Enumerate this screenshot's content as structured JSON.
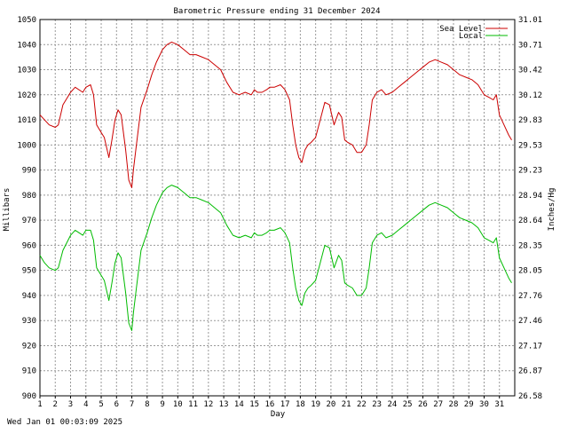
{
  "chart_data": {
    "type": "line",
    "title": "Barometric Pressure ending 31 December 2024",
    "xlabel": "Day",
    "ylabel_left": "Millibars",
    "ylabel_right": "Inches/Hg",
    "xlim": [
      1,
      32
    ],
    "ylim": [
      900,
      1050
    ],
    "grid": true,
    "legend_position": "top-right",
    "x_ticks": [
      "1",
      "2",
      "3",
      "4",
      "5",
      "6",
      "7",
      "8",
      "9",
      "10",
      "11",
      "12",
      "13",
      "14",
      "15",
      "16",
      "17",
      "18",
      "19",
      "20",
      "21",
      "22",
      "23",
      "24",
      "25",
      "26",
      "27",
      "28",
      "29",
      "30",
      "31"
    ],
    "y_ticks_left": [
      "900",
      "910",
      "920",
      "930",
      "940",
      "950",
      "960",
      "970",
      "980",
      "990",
      "1000",
      "1010",
      "1020",
      "1030",
      "1040",
      "1050"
    ],
    "y_ticks_right": [
      "26.58",
      "26.87",
      "27.17",
      "27.46",
      "27.76",
      "28.05",
      "28.35",
      "28.64",
      "28.94",
      "29.23",
      "29.53",
      "29.83",
      "30.12",
      "30.42",
      "30.71",
      "31.01"
    ],
    "timestamp": "Wed Jan 01 00:03:09 2025",
    "series": [
      {
        "name": "Sea Level",
        "color": "#cc0000",
        "x": [
          1.0,
          1.3,
          1.6,
          2.0,
          2.2,
          2.5,
          3.0,
          3.3,
          3.8,
          4.0,
          4.3,
          4.5,
          4.7,
          5.0,
          5.2,
          5.5,
          5.7,
          5.9,
          6.1,
          6.3,
          6.6,
          6.8,
          7.0,
          7.1,
          7.3,
          7.6,
          8.0,
          8.3,
          8.6,
          9.0,
          9.3,
          9.6,
          10.0,
          10.4,
          10.8,
          11.2,
          11.6,
          12.0,
          12.4,
          12.8,
          13.2,
          13.6,
          14.0,
          14.4,
          14.8,
          15.0,
          15.2,
          15.5,
          15.8,
          16.0,
          16.3,
          16.7,
          17.0,
          17.3,
          17.5,
          17.7,
          17.9,
          18.1,
          18.3,
          18.5,
          18.7,
          19.0,
          19.3,
          19.6,
          19.9,
          20.2,
          20.5,
          20.7,
          20.9,
          21.1,
          21.4,
          21.7,
          22.0,
          22.3,
          22.5,
          22.7,
          23.0,
          23.3,
          23.6,
          24.0,
          24.4,
          24.8,
          25.2,
          25.6,
          26.0,
          26.4,
          26.8,
          27.2,
          27.6,
          28.0,
          28.4,
          28.8,
          29.2,
          29.6,
          30.0,
          30.3,
          30.6,
          30.8,
          31.0,
          31.3,
          31.6,
          31.8
        ],
        "values": [
          1012,
          1010,
          1008,
          1007,
          1008,
          1016,
          1021,
          1023,
          1021,
          1023,
          1024,
          1020,
          1008,
          1005,
          1003,
          995,
          1002,
          1010,
          1014,
          1012,
          998,
          986,
          983,
          990,
          1000,
          1015,
          1022,
          1028,
          1033,
          1038,
          1040,
          1041,
          1040,
          1038,
          1036,
          1036,
          1035,
          1034,
          1032,
          1030,
          1025,
          1021,
          1020,
          1021,
          1020,
          1022,
          1021,
          1021,
          1022,
          1023,
          1023,
          1024,
          1022,
          1018,
          1008,
          1000,
          995,
          993,
          998,
          1000,
          1001,
          1003,
          1010,
          1017,
          1016,
          1008,
          1013,
          1011,
          1002,
          1001,
          1000,
          997,
          997,
          1000,
          1008,
          1018,
          1021,
          1022,
          1020,
          1021,
          1023,
          1025,
          1027,
          1029,
          1031,
          1033,
          1034,
          1033,
          1032,
          1030,
          1028,
          1027,
          1026,
          1024,
          1020,
          1019,
          1018,
          1020,
          1012,
          1008,
          1004,
          1002
        ]
      },
      {
        "name": "Local",
        "color": "#00bb00",
        "x": [
          1.0,
          1.3,
          1.6,
          2.0,
          2.2,
          2.5,
          3.0,
          3.3,
          3.8,
          4.0,
          4.3,
          4.5,
          4.7,
          5.0,
          5.2,
          5.5,
          5.7,
          5.9,
          6.1,
          6.3,
          6.6,
          6.8,
          7.0,
          7.1,
          7.3,
          7.6,
          8.0,
          8.3,
          8.6,
          9.0,
          9.3,
          9.6,
          10.0,
          10.4,
          10.8,
          11.2,
          11.6,
          12.0,
          12.4,
          12.8,
          13.2,
          13.6,
          14.0,
          14.4,
          14.8,
          15.0,
          15.2,
          15.5,
          15.8,
          16.0,
          16.3,
          16.7,
          17.0,
          17.3,
          17.5,
          17.7,
          17.9,
          18.1,
          18.3,
          18.5,
          18.7,
          19.0,
          19.3,
          19.6,
          19.9,
          20.2,
          20.5,
          20.7,
          20.9,
          21.1,
          21.4,
          21.7,
          22.0,
          22.3,
          22.5,
          22.7,
          23.0,
          23.3,
          23.6,
          24.0,
          24.4,
          24.8,
          25.2,
          25.6,
          26.0,
          26.4,
          26.8,
          27.2,
          27.6,
          28.0,
          28.4,
          28.8,
          29.2,
          29.6,
          30.0,
          30.3,
          30.6,
          30.8,
          31.0,
          31.3,
          31.6,
          31.8
        ],
        "values": [
          956,
          953,
          951,
          950,
          951,
          958,
          964,
          966,
          964,
          966,
          966,
          962,
          951,
          948,
          946,
          938,
          945,
          953,
          957,
          955,
          941,
          929,
          926,
          933,
          943,
          958,
          965,
          971,
          976,
          981,
          983,
          984,
          983,
          981,
          979,
          979,
          978,
          977,
          975,
          973,
          968,
          964,
          963,
          964,
          963,
          965,
          964,
          964,
          965,
          966,
          966,
          967,
          965,
          961,
          951,
          943,
          938,
          936,
          941,
          943,
          944,
          946,
          953,
          960,
          959,
          951,
          956,
          954,
          945,
          944,
          943,
          940,
          940,
          943,
          951,
          961,
          964,
          965,
          963,
          964,
          966,
          968,
          970,
          972,
          974,
          976,
          977,
          976,
          975,
          973,
          971,
          970,
          969,
          967,
          963,
          962,
          961,
          963,
          955,
          951,
          947,
          945
        ]
      }
    ]
  }
}
